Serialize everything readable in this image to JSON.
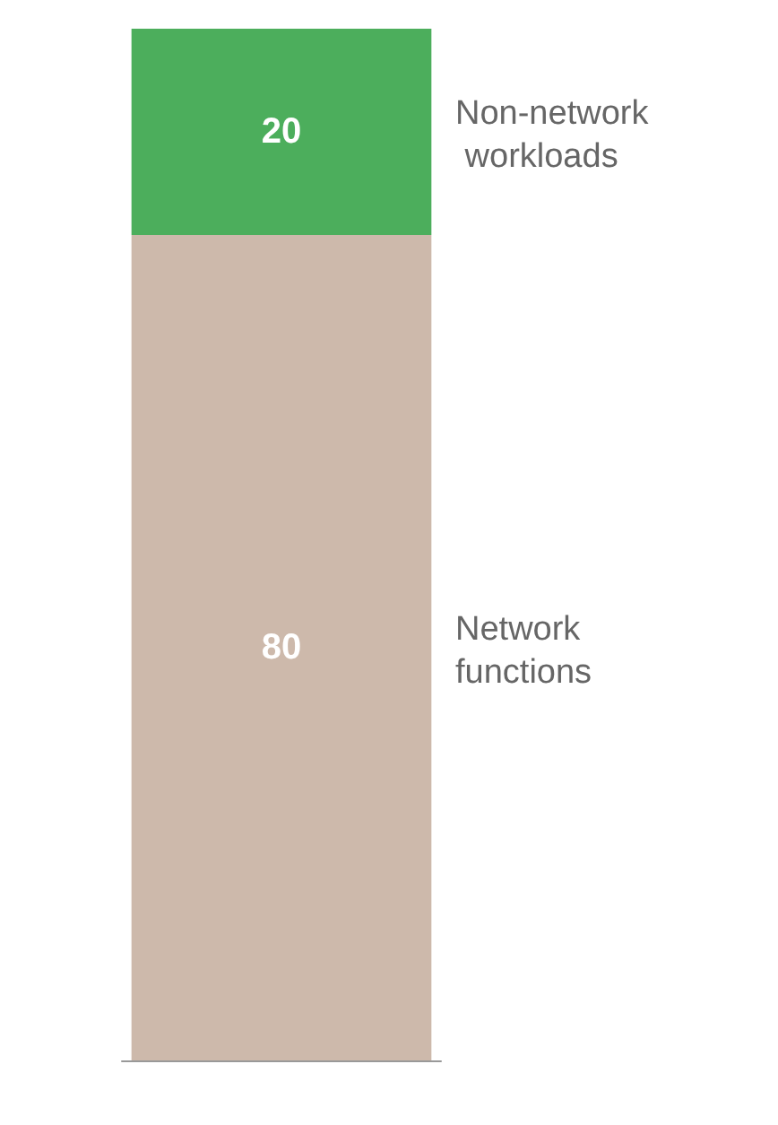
{
  "chart_data": {
    "type": "bar",
    "stacked": true,
    "categories": [
      null
    ],
    "series": [
      {
        "name": "Network functions",
        "color": "#cdb9ab",
        "values": [
          80
        ]
      },
      {
        "name": "Non-network workloads",
        "color": "#4cae5c",
        "values": [
          20
        ]
      }
    ],
    "data_labels": true
  }
}
